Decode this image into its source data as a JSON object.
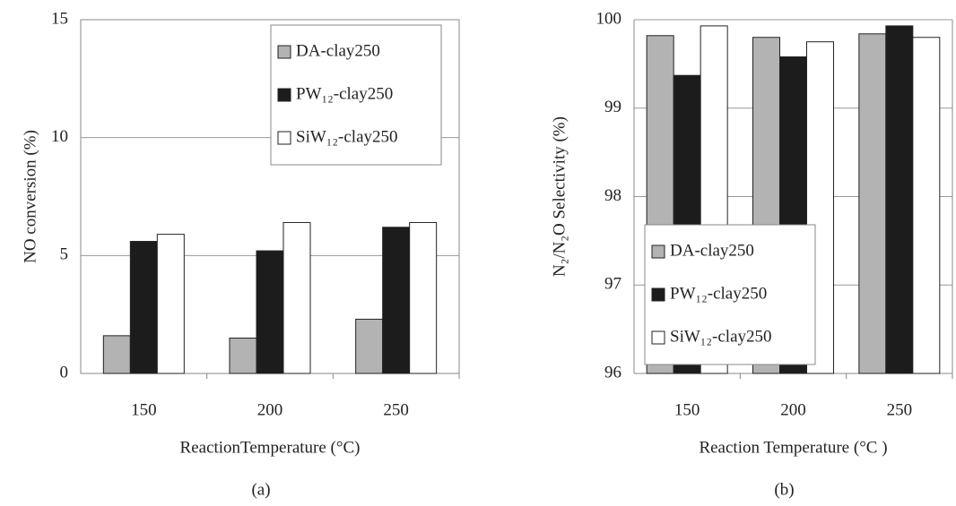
{
  "chart_data": [
    {
      "type": "bar",
      "panel_label": "(a)",
      "x_label": "ReactionTemperature (°C)",
      "y_label": "NO conversion (%)",
      "categories": [
        "150",
        "200",
        "250"
      ],
      "series": [
        {
          "name": "DA-clay250",
          "color": "#b3b3b3",
          "values": [
            1.6,
            1.5,
            2.3
          ]
        },
        {
          "name": "PW₁₂-clay250",
          "color": "#1c1c1c",
          "values": [
            5.6,
            5.2,
            6.2
          ]
        },
        {
          "name": "SiW₁₂-clay250",
          "color": "#ffffff",
          "values": [
            5.9,
            6.4,
            6.4
          ]
        }
      ],
      "ylim": [
        0,
        15
      ],
      "yticks": [
        0,
        5,
        10,
        15
      ],
      "grid": true,
      "legend": "upper right"
    },
    {
      "type": "bar",
      "panel_label": "(b)",
      "x_label": "Reaction Temperature (°C )",
      "y_label": "N₂/N₂O Selectivity (%)",
      "categories": [
        "150",
        "200",
        "250"
      ],
      "series": [
        {
          "name": "DA-clay250",
          "color": "#b3b3b3",
          "values": [
            99.82,
            99.8,
            99.84
          ]
        },
        {
          "name": "PW₁₂-clay250",
          "color": "#1c1c1c",
          "values": [
            99.37,
            99.58,
            99.93
          ]
        },
        {
          "name": "SiW₁₂-clay250",
          "color": "#ffffff",
          "values": [
            99.93,
            99.75,
            99.8
          ]
        }
      ],
      "ylim": [
        96,
        100
      ],
      "yticks": [
        96,
        97,
        98,
        99,
        100
      ],
      "grid": true,
      "legend": "lower left"
    }
  ]
}
